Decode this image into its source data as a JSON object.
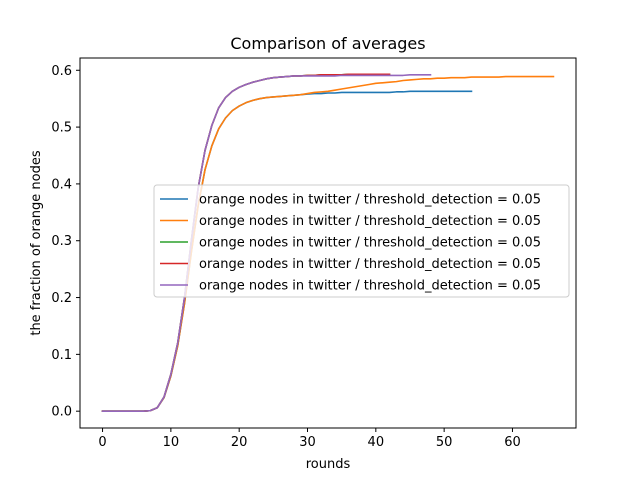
{
  "chart_data": {
    "type": "line",
    "title": "Comparison of averages",
    "xlabel": "rounds",
    "ylabel": "the fraction of orange nodes",
    "xlim": [
      -3.3,
      69.3
    ],
    "ylim": [
      -0.0296,
      0.6216
    ],
    "xticks": [
      0,
      10,
      20,
      30,
      40,
      50,
      60
    ],
    "yticks": [
      0.0,
      0.1,
      0.2,
      0.3,
      0.4,
      0.5,
      0.6
    ],
    "xtick_labels": [
      "0",
      "10",
      "20",
      "30",
      "40",
      "50",
      "60"
    ],
    "ytick_labels": [
      "0.0",
      "0.1",
      "0.2",
      "0.3",
      "0.4",
      "0.5",
      "0.6"
    ],
    "grid": false,
    "legend_position": "center-right",
    "series": [
      {
        "name": "orange nodes in twitter / threshold_detection = 0.05",
        "color": "#1f77b4",
        "x": [
          0,
          1,
          2,
          3,
          4,
          5,
          6,
          7,
          8,
          9,
          10,
          11,
          12,
          13,
          14,
          15,
          16,
          17,
          18,
          19,
          20,
          21,
          22,
          23,
          24,
          25,
          26,
          27,
          28,
          29,
          30,
          31,
          32,
          33,
          34,
          35,
          36,
          37,
          38,
          39,
          40,
          41,
          42,
          43,
          44,
          45,
          46,
          47,
          48,
          49,
          50,
          51,
          52,
          53,
          54
        ],
        "y": [
          0,
          0,
          0,
          0,
          0,
          0,
          0,
          0.001,
          0.006,
          0.024,
          0.062,
          0.115,
          0.19,
          0.28,
          0.362,
          0.425,
          0.467,
          0.497,
          0.516,
          0.529,
          0.537,
          0.543,
          0.547,
          0.55,
          0.552,
          0.553,
          0.554,
          0.555,
          0.556,
          0.557,
          0.558,
          0.559,
          0.559,
          0.56,
          0.56,
          0.561,
          0.561,
          0.561,
          0.561,
          0.561,
          0.561,
          0.561,
          0.561,
          0.562,
          0.562,
          0.563,
          0.563,
          0.563,
          0.563,
          0.563,
          0.563,
          0.563,
          0.563,
          0.563,
          0.563
        ]
      },
      {
        "name": "orange nodes in twitter / threshold_detection = 0.05",
        "color": "#ff7f0e",
        "x": [
          0,
          1,
          2,
          3,
          4,
          5,
          6,
          7,
          8,
          9,
          10,
          11,
          12,
          13,
          14,
          15,
          16,
          17,
          18,
          19,
          20,
          21,
          22,
          23,
          24,
          25,
          26,
          27,
          28,
          29,
          30,
          31,
          32,
          33,
          34,
          35,
          36,
          37,
          38,
          39,
          40,
          41,
          42,
          43,
          44,
          45,
          46,
          47,
          48,
          49,
          50,
          51,
          52,
          53,
          54,
          55,
          56,
          57,
          58,
          59,
          60,
          61,
          62,
          63,
          64,
          65,
          66
        ],
        "y": [
          0,
          0,
          0,
          0,
          0,
          0,
          0,
          0.001,
          0.006,
          0.024,
          0.062,
          0.115,
          0.19,
          0.28,
          0.362,
          0.425,
          0.467,
          0.497,
          0.516,
          0.529,
          0.537,
          0.543,
          0.547,
          0.55,
          0.552,
          0.553,
          0.554,
          0.555,
          0.556,
          0.557,
          0.559,
          0.561,
          0.562,
          0.563,
          0.565,
          0.567,
          0.569,
          0.571,
          0.573,
          0.575,
          0.577,
          0.578,
          0.579,
          0.58,
          0.582,
          0.583,
          0.584,
          0.585,
          0.585,
          0.586,
          0.586,
          0.587,
          0.587,
          0.587,
          0.588,
          0.588,
          0.588,
          0.588,
          0.588,
          0.589,
          0.589,
          0.589,
          0.589,
          0.589,
          0.589,
          0.589,
          0.589
        ]
      },
      {
        "name": "orange nodes in twitter / threshold_detection = 0.05",
        "color": "#2ca02c",
        "x": [
          0,
          1,
          2,
          3,
          4,
          5,
          6,
          7,
          8,
          9,
          10,
          11,
          12,
          13,
          14,
          15,
          16,
          17,
          18,
          19,
          20,
          21,
          22,
          23,
          24,
          25,
          26,
          27,
          28,
          29,
          30,
          31,
          32,
          33,
          34,
          35,
          36,
          37,
          38,
          39,
          40,
          41,
          42
        ],
        "y": [
          0,
          0,
          0,
          0,
          0,
          0,
          0,
          0.001,
          0.006,
          0.025,
          0.065,
          0.12,
          0.2,
          0.3,
          0.393,
          0.459,
          0.503,
          0.534,
          0.552,
          0.563,
          0.57,
          0.575,
          0.579,
          0.582,
          0.585,
          0.587,
          0.588,
          0.589,
          0.59,
          0.59,
          0.591,
          0.591,
          0.592,
          0.592,
          0.592,
          0.592,
          0.593,
          0.593,
          0.593,
          0.593,
          0.593,
          0.593,
          0.593
        ]
      },
      {
        "name": "orange nodes in twitter / threshold_detection = 0.05",
        "color": "#d62728",
        "x": [
          0,
          1,
          2,
          3,
          4,
          5,
          6,
          7,
          8,
          9,
          10,
          11,
          12,
          13,
          14,
          15,
          16,
          17,
          18,
          19,
          20,
          21,
          22,
          23,
          24,
          25,
          26,
          27,
          28,
          29,
          30,
          31,
          32,
          33,
          34,
          35,
          36,
          37,
          38,
          39,
          40,
          41,
          42
        ],
        "y": [
          0,
          0,
          0,
          0,
          0,
          0,
          0,
          0.001,
          0.006,
          0.025,
          0.065,
          0.12,
          0.2,
          0.3,
          0.393,
          0.459,
          0.503,
          0.534,
          0.552,
          0.563,
          0.57,
          0.575,
          0.579,
          0.582,
          0.585,
          0.587,
          0.588,
          0.589,
          0.59,
          0.59,
          0.591,
          0.591,
          0.592,
          0.592,
          0.592,
          0.592,
          0.593,
          0.593,
          0.593,
          0.593,
          0.593,
          0.593,
          0.593
        ]
      },
      {
        "name": "orange nodes in twitter / threshold_detection = 0.05",
        "color": "#9467bd",
        "x": [
          0,
          1,
          2,
          3,
          4,
          5,
          6,
          7,
          8,
          9,
          10,
          11,
          12,
          13,
          14,
          15,
          16,
          17,
          18,
          19,
          20,
          21,
          22,
          23,
          24,
          25,
          26,
          27,
          28,
          29,
          30,
          31,
          32,
          33,
          34,
          35,
          36,
          37,
          38,
          39,
          40,
          41,
          42,
          43,
          44,
          45,
          46,
          47,
          48
        ],
        "y": [
          0,
          0,
          0,
          0,
          0,
          0,
          0,
          0.001,
          0.006,
          0.025,
          0.065,
          0.12,
          0.2,
          0.3,
          0.393,
          0.459,
          0.503,
          0.534,
          0.552,
          0.563,
          0.57,
          0.575,
          0.579,
          0.582,
          0.585,
          0.587,
          0.588,
          0.589,
          0.59,
          0.59,
          0.59,
          0.59,
          0.59,
          0.59,
          0.59,
          0.591,
          0.591,
          0.591,
          0.591,
          0.591,
          0.591,
          0.591,
          0.591,
          0.591,
          0.591,
          0.592,
          0.592,
          0.592,
          0.592
        ]
      }
    ]
  }
}
